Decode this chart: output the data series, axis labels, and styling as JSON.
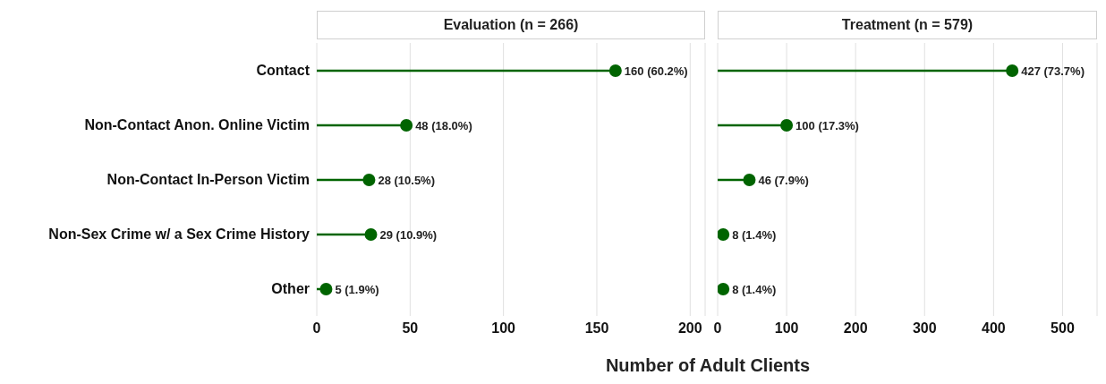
{
  "chart_data": [
    {
      "type": "lollipop",
      "orientation": "horizontal",
      "title": "Evaluation (n = 266)",
      "xlabel": "Number of Adult Clients",
      "categories": [
        "Contact",
        "Non-Contact Anon. Online Victim",
        "Non-Contact In-Person Victim",
        "Non-Sex Crime w/ a Sex Crime History",
        "Other"
      ],
      "values": [
        160,
        48,
        28,
        29,
        5
      ],
      "value_labels": [
        "160 (60.2%)",
        "48 (18.0%)",
        "28 (10.5%)",
        "29 (10.9%)",
        "5 (1.9%)"
      ],
      "color": "#006400",
      "marker": "circle",
      "xlim": [
        0,
        208
      ],
      "xticks": [
        0,
        50,
        100,
        150,
        200
      ],
      "grid": "x"
    },
    {
      "type": "lollipop",
      "orientation": "horizontal",
      "title": "Treatment (n = 579)",
      "categories": [
        null,
        null,
        null,
        null,
        null
      ],
      "values": [
        427,
        100,
        46,
        8,
        8
      ],
      "value_labels": [
        "427 (73.7%)",
        "100 (17.3%)",
        "46 (7.9%)",
        "8 (1.4%)",
        "8 (1.4%)"
      ],
      "color": "#006400",
      "marker": "circle",
      "xlim": [
        0,
        550
      ],
      "xticks": [
        0,
        100,
        200,
        300,
        400,
        500
      ],
      "grid": "x",
      "tick_labels": "x"
    }
  ]
}
